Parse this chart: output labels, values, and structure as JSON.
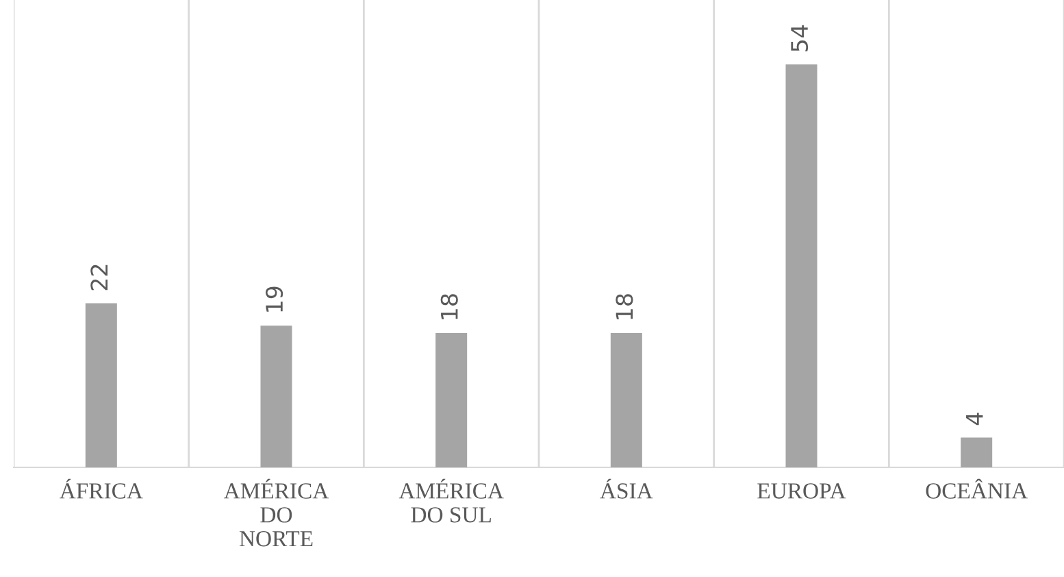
{
  "chart_data": {
    "type": "bar",
    "categories": [
      "ÁFRICA",
      "AMÉRICA\nDO\nNORTE",
      "AMÉRICA\nDO SUL",
      "ÁSIA",
      "EUROPA",
      "OCEÂNIA"
    ],
    "values": [
      22,
      19,
      18,
      18,
      54,
      4
    ],
    "color": "#a5a5a5",
    "data_labels": true,
    "grid": "x"
  }
}
